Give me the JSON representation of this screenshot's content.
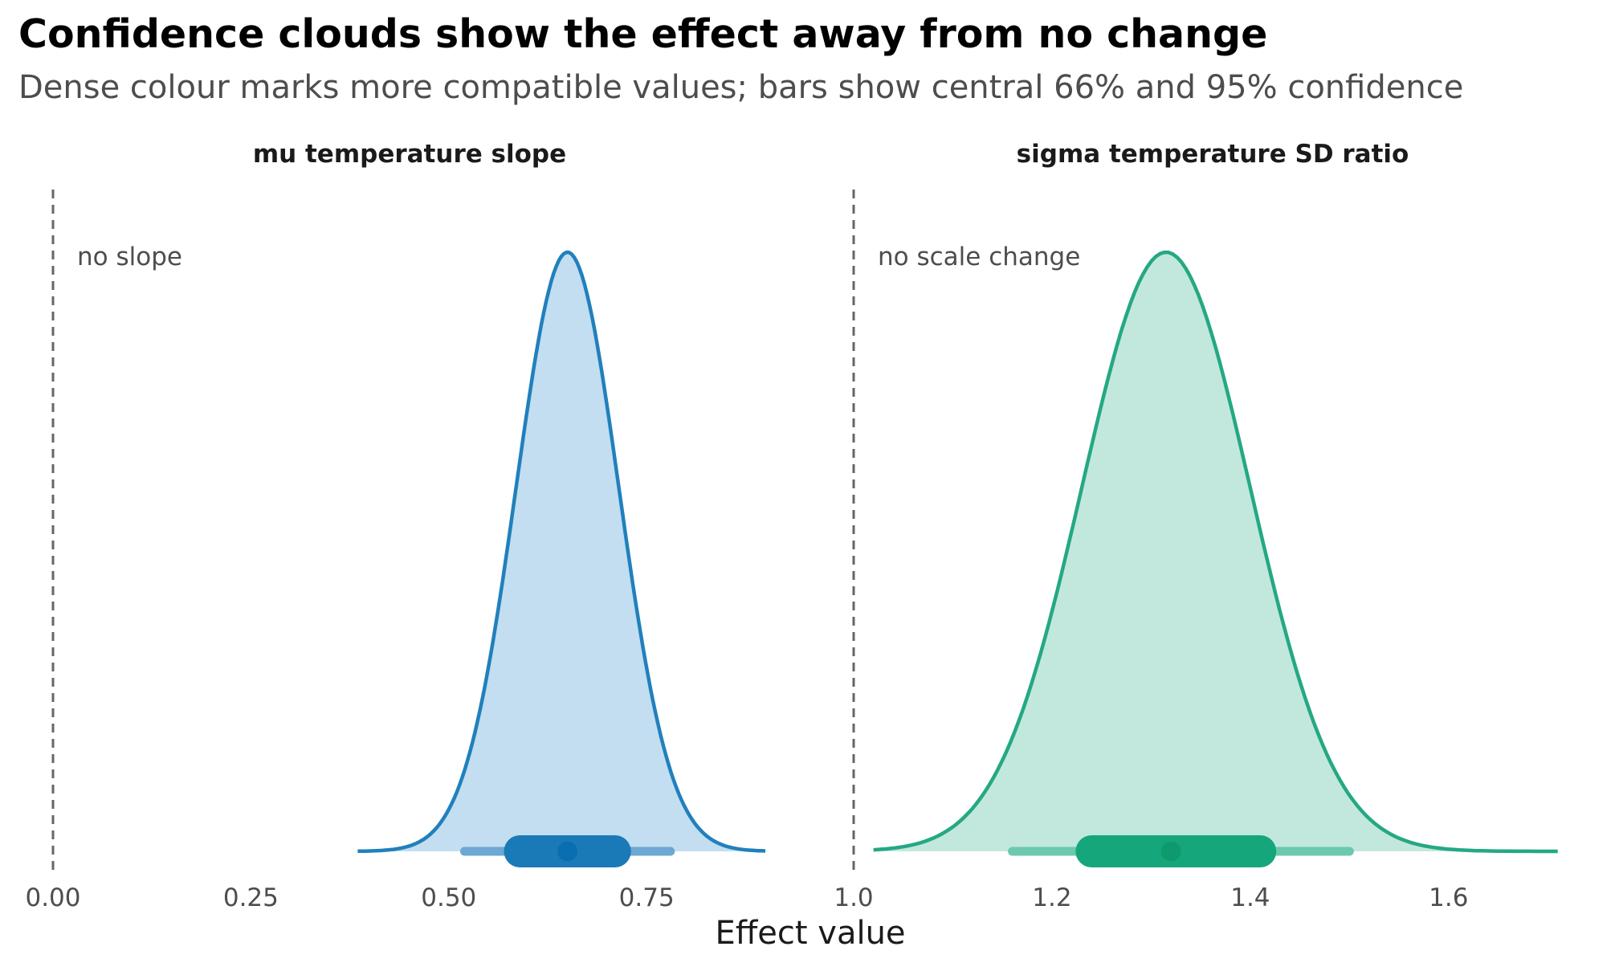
{
  "title": "Confidence clouds show the effect away from no change",
  "subtitle": "Dense colour marks more compatible values; bars show central 66% and 95% confidence",
  "xlabel": "Effect value",
  "chart_data": [
    {
      "type": "area",
      "facet_title": "mu temperature slope",
      "reference": {
        "x": 0.0,
        "label": "no slope"
      },
      "xlim": [
        0.0,
        0.9
      ],
      "ticks": [
        0.0,
        0.25,
        0.5,
        0.75
      ],
      "tick_labels": [
        "0.00",
        "0.25",
        "0.50",
        "0.75"
      ],
      "density": {
        "mean": 0.65,
        "sd": 0.065,
        "from": 0.385,
        "to": 0.9
      },
      "interval_95": [
        0.52,
        0.78
      ],
      "interval_66": [
        0.59,
        0.71
      ],
      "point_estimate": 0.65,
      "color": "#2180bc",
      "fill": "#c2def0",
      "interval_95_color": "#6ca8d3",
      "interval_66_color": "#1a7ab8",
      "point_color": "#0a6fb0"
    },
    {
      "type": "area",
      "facet_title": "sigma temperature SD ratio",
      "reference": {
        "x": 1.0,
        "label": "no scale change"
      },
      "xlim": [
        1.0,
        1.72
      ],
      "ticks": [
        1.0,
        1.2,
        1.4,
        1.6
      ],
      "tick_labels": [
        "1.0",
        "1.2",
        "1.4",
        "1.6"
      ],
      "density": {
        "mean": 1.315,
        "sd": 0.085,
        "from": 1.02,
        "to": 1.71
      },
      "interval_95": [
        1.16,
        1.5
      ],
      "interval_66": [
        1.24,
        1.41
      ],
      "point_estimate": 1.32,
      "color": "#25a884",
      "fill": "#c2e8dd",
      "interval_95_color": "#6cc9ae",
      "interval_66_color": "#16a67c",
      "point_color": "#0f9a6e"
    }
  ]
}
